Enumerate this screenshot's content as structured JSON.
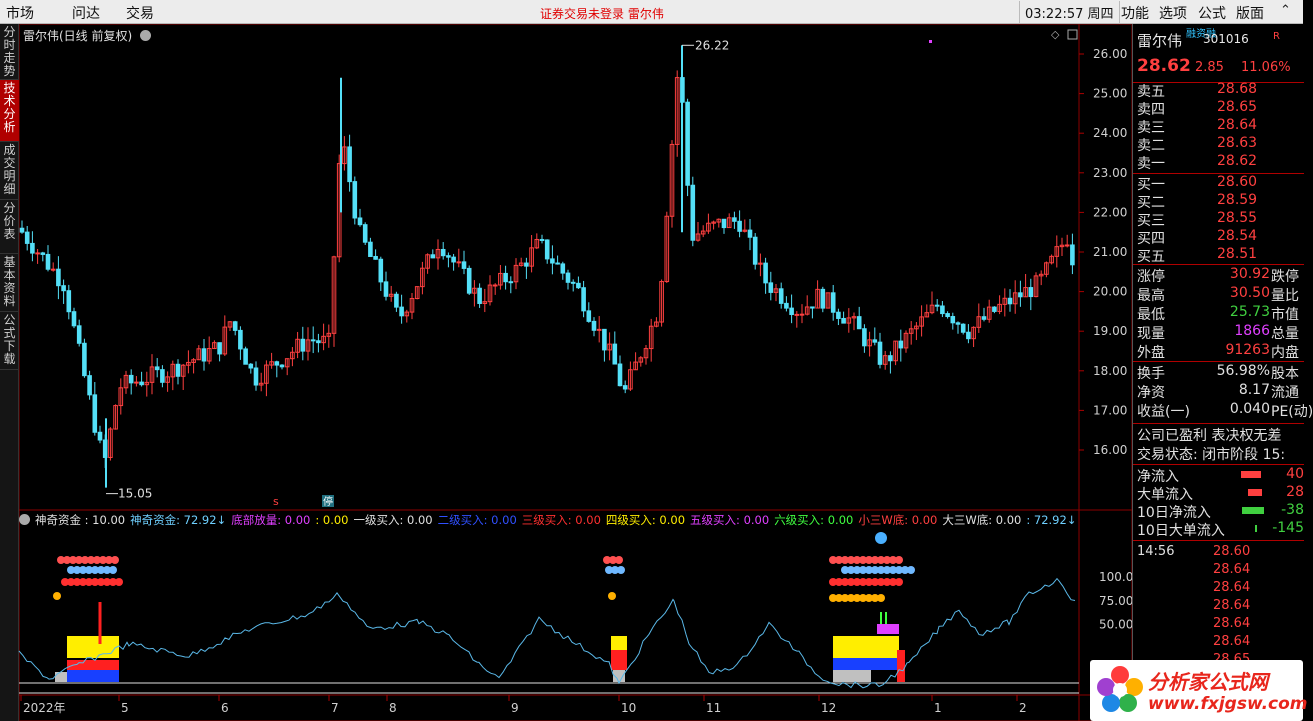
{
  "topbar": {
    "menu": [
      "市场",
      "问达",
      "交易"
    ],
    "status_text": "证券交易未登录   雷尔伟",
    "clock": "03:22:57 周四",
    "right_menu": [
      "功能",
      "选项",
      "公式",
      "版面"
    ]
  },
  "left_tabs": [
    {
      "label": "分时走势",
      "active": false
    },
    {
      "label": "技术分析",
      "active": true
    },
    {
      "label": "成交明细",
      "active": false
    },
    {
      "label": "分价表",
      "active": false
    },
    {
      "label": "基本资料",
      "active": false
    },
    {
      "label": "公式下载",
      "active": false
    }
  ],
  "main_chart": {
    "title": "雷尔伟(日线 前复权)",
    "high_label": "26.22",
    "low_label": "15.05",
    "price_axis": [
      "26.00",
      "25.00",
      "24.00",
      "23.00",
      "22.00",
      "21.00",
      "20.00",
      "19.00",
      "18.00",
      "17.00",
      "16.00"
    ],
    "markers": {
      "s_marker": "s",
      "stop_marker": "停"
    }
  },
  "indicator": {
    "items": [
      {
        "text": "神奇资金 : 10.00",
        "color": "#e0e0e0"
      },
      {
        "text": "神奇资金: 72.92↓",
        "color": "#6fd0ff"
      },
      {
        "text": "底部放量: 0.00",
        "color": "#e040ff"
      },
      {
        "text": ": 0.00",
        "color": "#ffee00"
      },
      {
        "text": "一级买入: 0.00",
        "color": "#e0e0e0"
      },
      {
        "text": "二级买入: 0.00",
        "color": "#3050ff"
      },
      {
        "text": "三级买入: 0.00",
        "color": "#ff3030"
      },
      {
        "text": "四级买入: 0.00",
        "color": "#ffee00"
      },
      {
        "text": "五级买入: 0.00",
        "color": "#e040ff"
      },
      {
        "text": "六级买入: 0.00",
        "color": "#40ff40"
      },
      {
        "text": "小三W底: 0.00",
        "color": "#ff4040"
      },
      {
        "text": "大三W底: 0.00",
        "color": "#e0e0e0"
      },
      {
        "text": ": 72.92↓",
        "color": "#6fd0ff"
      }
    ],
    "axis": [
      "100.0",
      "75.00",
      "50.00"
    ]
  },
  "time_axis": [
    "2022年",
    "5",
    "6",
    "7",
    "8",
    "9",
    "10",
    "11",
    "12",
    "1",
    "2"
  ],
  "quote": {
    "name": "雷尔伟",
    "tag": "融资融",
    "code": "301016",
    "r_flag": "R",
    "price": "28.62",
    "change": "2.85",
    "pct": "11.06%",
    "asks": [
      {
        "label": "卖五",
        "price": "28.68"
      },
      {
        "label": "卖四",
        "price": "28.65"
      },
      {
        "label": "卖三",
        "price": "28.64"
      },
      {
        "label": "卖二",
        "price": "28.63"
      },
      {
        "label": "卖一",
        "price": "28.62"
      }
    ],
    "bids": [
      {
        "label": "买一",
        "price": "28.60"
      },
      {
        "label": "买二",
        "price": "28.59"
      },
      {
        "label": "买三",
        "price": "28.55"
      },
      {
        "label": "买四",
        "price": "28.54"
      },
      {
        "label": "买五",
        "price": "28.51"
      }
    ],
    "stats": [
      {
        "label": "涨停",
        "value": "30.92",
        "color": "#ff4040",
        "label2": "跌停"
      },
      {
        "label": "最高",
        "value": "30.50",
        "color": "#ff4040",
        "label2": "量比"
      },
      {
        "label": "最低",
        "value": "25.73",
        "color": "#40d040",
        "label2": "市值"
      },
      {
        "label": "现量",
        "value": "1866",
        "color": "#e040ff",
        "label2": "总量"
      },
      {
        "label": "外盘",
        "value": "91263",
        "color": "#ff4040",
        "label2": "内盘"
      },
      {
        "label": "换手",
        "value": "56.98%",
        "color": "#e0e0e0",
        "label2": "股本"
      },
      {
        "label": "净资",
        "value": "8.17",
        "color": "#e0e0e0",
        "label2": "流通"
      },
      {
        "label": "收益(一)",
        "value": "0.040",
        "color": "#e0e0e0",
        "label2": "PE(动)"
      }
    ],
    "company_status": "公司已盈利 表决权无差",
    "trade_status": "交易状态: 闭市阶段 15:",
    "flows": [
      {
        "label": "净流入",
        "value": "40",
        "color": "#ff4040"
      },
      {
        "label": "大单流入",
        "value": "28",
        "color": "#ff4040"
      },
      {
        "label": "10日净流入",
        "value": "-38",
        "color": "#40d040"
      },
      {
        "label": "10日大单流入",
        "value": "-145",
        "color": "#40d040"
      }
    ],
    "ticks": [
      {
        "time": "14:56",
        "price": "28.60"
      },
      {
        "time": "",
        "price": "28.64"
      },
      {
        "time": "",
        "price": "28.64"
      },
      {
        "time": "",
        "price": "28.64"
      },
      {
        "time": "",
        "price": "28.64"
      },
      {
        "time": "",
        "price": "28.64"
      },
      {
        "time": "",
        "price": "28.65"
      }
    ]
  },
  "watermark": {
    "title": "分析家公式网",
    "url": "www.fxjgsw.com"
  },
  "colors": {
    "up": "#ff4040",
    "down": "#54e0f8",
    "wave": "#5ab8e8"
  }
}
